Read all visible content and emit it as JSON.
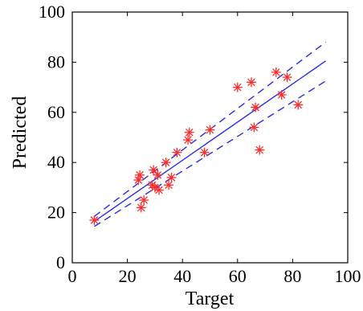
{
  "chart_data": {
    "type": "scatter",
    "title": "",
    "xlabel": "Target",
    "ylabel": "Predicted",
    "xlim": [
      0,
      100
    ],
    "ylim": [
      0,
      100
    ],
    "xticks": [
      "0",
      "20",
      "40",
      "60",
      "80",
      "100"
    ],
    "yticks": [
      "0",
      "20",
      "40",
      "60",
      "80",
      "100"
    ],
    "grid": false,
    "points": [
      {
        "x": 8,
        "y": 17
      },
      {
        "x": 24,
        "y": 33
      },
      {
        "x": 24.5,
        "y": 35
      },
      {
        "x": 25,
        "y": 22
      },
      {
        "x": 26,
        "y": 25
      },
      {
        "x": 29,
        "y": 31
      },
      {
        "x": 29.5,
        "y": 37
      },
      {
        "x": 30,
        "y": 30
      },
      {
        "x": 31,
        "y": 35
      },
      {
        "x": 31.5,
        "y": 29
      },
      {
        "x": 34,
        "y": 40
      },
      {
        "x": 35,
        "y": 31
      },
      {
        "x": 36,
        "y": 34
      },
      {
        "x": 38,
        "y": 44
      },
      {
        "x": 42,
        "y": 49
      },
      {
        "x": 42.5,
        "y": 52
      },
      {
        "x": 48,
        "y": 44
      },
      {
        "x": 50,
        "y": 53
      },
      {
        "x": 60,
        "y": 70
      },
      {
        "x": 65,
        "y": 72
      },
      {
        "x": 66,
        "y": 54
      },
      {
        "x": 66.5,
        "y": 62
      },
      {
        "x": 68,
        "y": 45
      },
      {
        "x": 74,
        "y": 76
      },
      {
        "x": 76,
        "y": 67
      },
      {
        "x": 78,
        "y": 74
      },
      {
        "x": 82,
        "y": 63
      }
    ],
    "fit_lines": [
      {
        "style": "solid",
        "from": [
          8,
          16.5
        ],
        "to": [
          92,
          80.5
        ]
      },
      {
        "style": "dashed",
        "from": [
          8,
          18.5
        ],
        "to": [
          92,
          88
        ]
      },
      {
        "style": "dashed",
        "from": [
          8,
          14.5
        ],
        "to": [
          92,
          72.5
        ]
      }
    ],
    "colors": {
      "points": "#ff2a2a",
      "lines": "#2a2ae8",
      "axes": "#000000"
    }
  }
}
